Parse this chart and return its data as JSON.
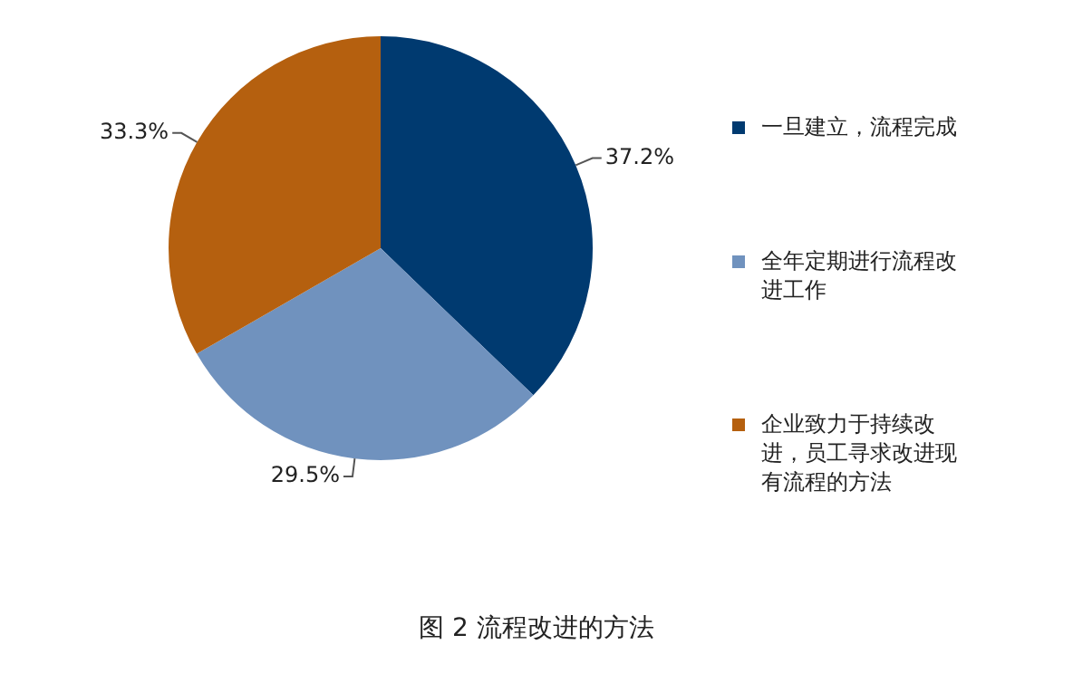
{
  "chart_data": {
    "type": "pie",
    "title": "图 2 流程改进的方法",
    "categories": [
      "一旦建立，流程完成",
      "全年定期进行流程改进工作",
      "企业致力于持续改进，员工寻求改进现有流程的方法"
    ],
    "values": [
      37.2,
      29.5,
      33.3
    ],
    "colors": [
      "#003a70",
      "#7092be",
      "#b5600f"
    ],
    "value_labels": [
      "37.2%",
      "29.5%",
      "33.3%"
    ],
    "legend": "right"
  }
}
